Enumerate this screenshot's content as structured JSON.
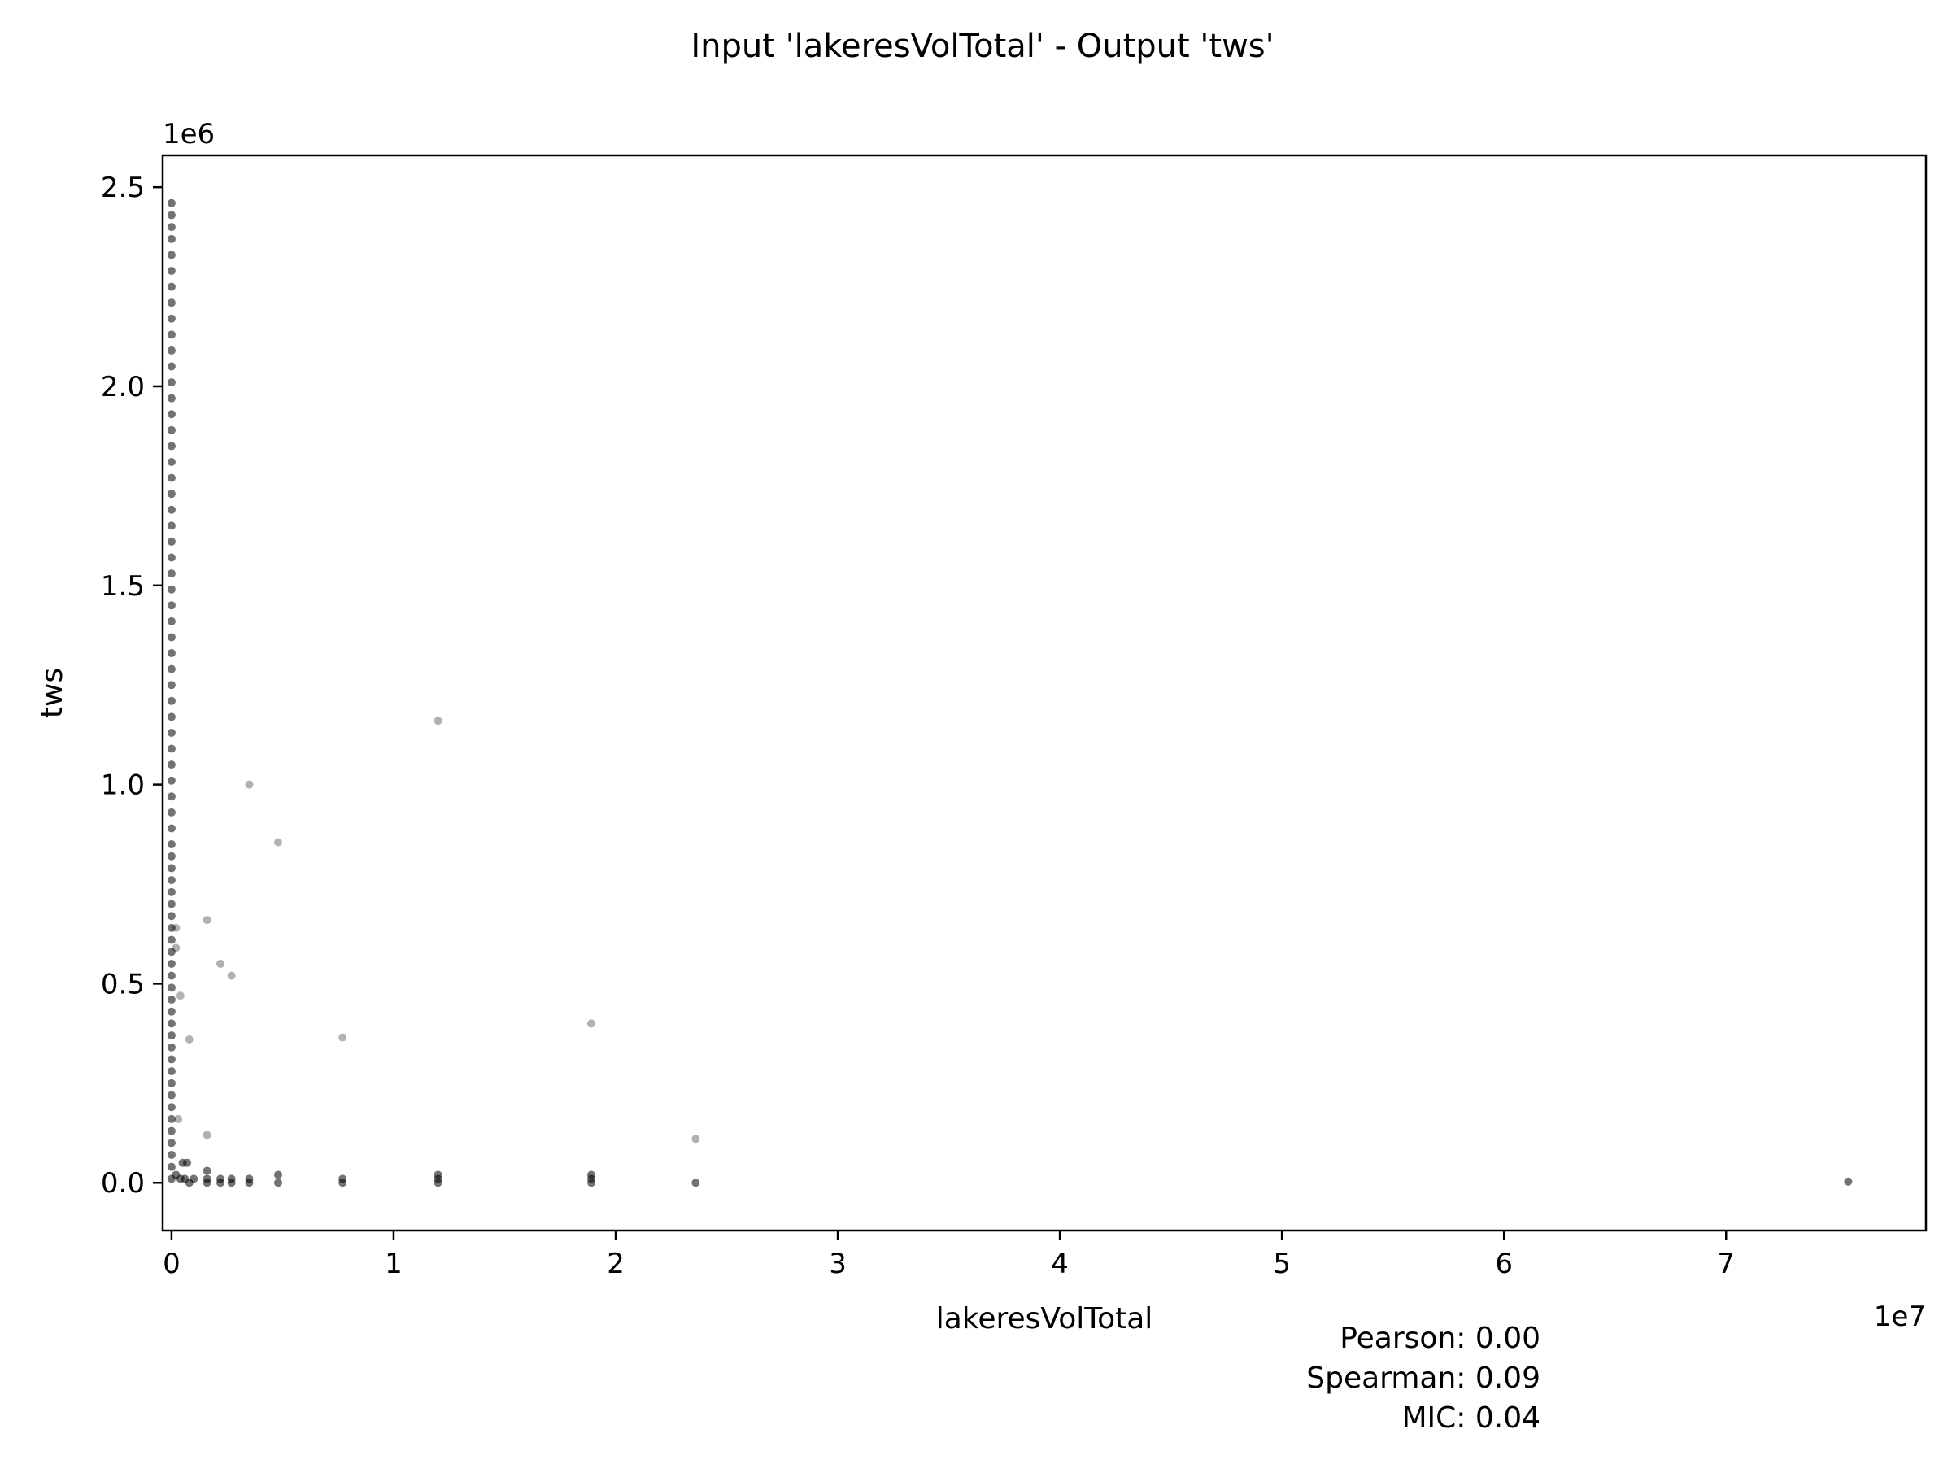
{
  "chart_data": {
    "type": "scatter",
    "title": "Input 'lakeresVolTotal' - Output 'tws'",
    "xlabel": "lakeresVolTotal",
    "ylabel": "tws",
    "x_offset_text": "1e7",
    "y_offset_text": "1e6",
    "x_scale": 10000000,
    "y_scale": 1000000,
    "xlim": [
      -0.04,
      7.9
    ],
    "ylim": [
      -0.12,
      2.58
    ],
    "x_ticks": [
      0,
      1,
      2,
      3,
      4,
      5,
      6,
      7
    ],
    "x_tick_labels": [
      "0",
      "1",
      "2",
      "3",
      "4",
      "5",
      "6",
      "7"
    ],
    "y_ticks": [
      0.0,
      0.5,
      1.0,
      1.5,
      2.0,
      2.5
    ],
    "y_tick_labels": [
      "0.0",
      "0.5",
      "1.0",
      "1.5",
      "2.0",
      "2.5"
    ],
    "grid": false,
    "point_color": "#000000",
    "stats": [
      "Pearson: 0.00",
      "Spearman: 0.09",
      "MIC: 0.04"
    ],
    "series": [
      {
        "points": [
          [
            0.0,
            2.46
          ],
          [
            0.0,
            2.43
          ],
          [
            0.0,
            2.4
          ],
          [
            0.0,
            2.37
          ],
          [
            0.0,
            2.33
          ],
          [
            0.0,
            2.29
          ],
          [
            0.0,
            2.25
          ],
          [
            0.0,
            2.21
          ],
          [
            0.0,
            2.17
          ],
          [
            0.0,
            2.13
          ],
          [
            0.0,
            2.09
          ],
          [
            0.0,
            2.05
          ],
          [
            0.0,
            2.01
          ],
          [
            0.0,
            1.97
          ],
          [
            0.0,
            1.93
          ],
          [
            0.0,
            1.89
          ],
          [
            0.0,
            1.85
          ],
          [
            0.0,
            1.81
          ],
          [
            0.0,
            1.77
          ],
          [
            0.0,
            1.73
          ],
          [
            0.0,
            1.69
          ],
          [
            0.0,
            1.65
          ],
          [
            0.0,
            1.61
          ],
          [
            0.0,
            1.57
          ],
          [
            0.0,
            1.53
          ],
          [
            0.0,
            1.49
          ],
          [
            0.0,
            1.45
          ],
          [
            0.0,
            1.41
          ],
          [
            0.0,
            1.37
          ],
          [
            0.0,
            1.33
          ],
          [
            0.0,
            1.29
          ],
          [
            0.0,
            1.25
          ],
          [
            0.0,
            1.21
          ],
          [
            0.0,
            1.17
          ],
          [
            0.0,
            1.13
          ],
          [
            0.0,
            1.09
          ],
          [
            0.0,
            1.05
          ],
          [
            0.0,
            1.01
          ],
          [
            0.0,
            0.97
          ],
          [
            0.0,
            0.93
          ],
          [
            0.0,
            0.89
          ],
          [
            0.0,
            0.85
          ],
          [
            0.0,
            0.82
          ],
          [
            0.0,
            0.79
          ],
          [
            0.0,
            0.76
          ],
          [
            0.0,
            0.73
          ],
          [
            0.0,
            0.7
          ],
          [
            0.0,
            0.67
          ],
          [
            0.0,
            0.64
          ],
          [
            0.0,
            0.61
          ],
          [
            0.0,
            0.58
          ],
          [
            0.0,
            0.55
          ],
          [
            0.0,
            0.52
          ],
          [
            0.0,
            0.49
          ],
          [
            0.0,
            0.46
          ],
          [
            0.0,
            0.43
          ],
          [
            0.0,
            0.4
          ],
          [
            0.0,
            0.37
          ],
          [
            0.0,
            0.34
          ],
          [
            0.0,
            0.31
          ],
          [
            0.0,
            0.28
          ],
          [
            0.0,
            0.25
          ],
          [
            0.0,
            0.22
          ],
          [
            0.0,
            0.19
          ],
          [
            0.0,
            0.16
          ],
          [
            0.0,
            0.13
          ],
          [
            0.0,
            0.1
          ],
          [
            0.0,
            0.07
          ],
          [
            0.0,
            0.04
          ],
          [
            0.0,
            0.01
          ],
          [
            0.02,
            0.64
          ],
          [
            0.02,
            0.59
          ],
          [
            0.04,
            0.47
          ],
          [
            0.08,
            0.36
          ],
          [
            0.03,
            0.16
          ],
          [
            0.05,
            0.05
          ],
          [
            0.07,
            0.05
          ],
          [
            0.02,
            0.02
          ],
          [
            0.04,
            0.01
          ],
          [
            0.06,
            0.01
          ],
          [
            0.08,
            0.0
          ],
          [
            0.1,
            0.01
          ],
          [
            0.16,
            0.66
          ],
          [
            0.16,
            0.12
          ],
          [
            0.16,
            0.03
          ],
          [
            0.16,
            0.01
          ],
          [
            0.16,
            0.0
          ],
          [
            0.22,
            0.55
          ],
          [
            0.22,
            0.01
          ],
          [
            0.22,
            0.0
          ],
          [
            0.27,
            0.52
          ],
          [
            0.27,
            0.01
          ],
          [
            0.27,
            0.0
          ],
          [
            0.35,
            1.0
          ],
          [
            0.35,
            0.01
          ],
          [
            0.35,
            0.0
          ],
          [
            0.48,
            0.855
          ],
          [
            0.48,
            0.02
          ],
          [
            0.48,
            0.0
          ],
          [
            0.77,
            0.365
          ],
          [
            0.77,
            0.01
          ],
          [
            0.77,
            0.0
          ],
          [
            1.2,
            1.16
          ],
          [
            1.2,
            0.02
          ],
          [
            1.2,
            0.01
          ],
          [
            1.2,
            0.0
          ],
          [
            1.89,
            0.4
          ],
          [
            1.89,
            0.02
          ],
          [
            1.89,
            0.01
          ],
          [
            1.89,
            0.0
          ],
          [
            2.36,
            0.11
          ],
          [
            2.36,
            0.0
          ],
          [
            7.55,
            0.003
          ]
        ]
      }
    ]
  }
}
